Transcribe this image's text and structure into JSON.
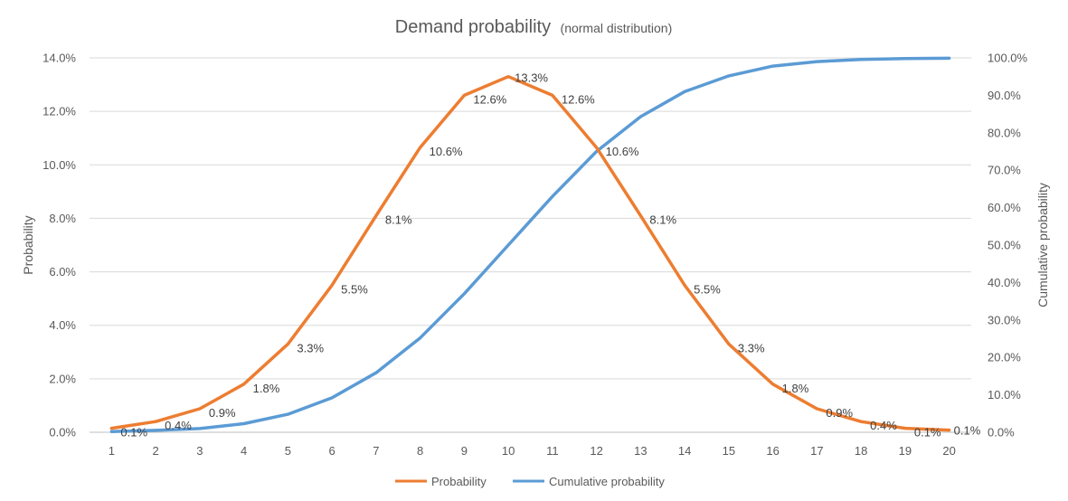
{
  "chart_data": {
    "type": "line",
    "title": "Demand probability",
    "subtitle": "(normal distribution)",
    "categories": [
      "1",
      "2",
      "3",
      "4",
      "5",
      "6",
      "7",
      "8",
      "9",
      "10",
      "11",
      "12",
      "13",
      "14",
      "15",
      "16",
      "17",
      "18",
      "19",
      "20"
    ],
    "ylabel": "Probability",
    "y2label": "Cumulative probability",
    "ylim": [
      0,
      14
    ],
    "y2lim": [
      0,
      100
    ],
    "yticks": [
      "0.0%",
      "2.0%",
      "4.0%",
      "6.0%",
      "8.0%",
      "10.0%",
      "12.0%",
      "14.0%"
    ],
    "y2ticks": [
      "0.0%",
      "10.0%",
      "20.0%",
      "30.0%",
      "40.0%",
      "50.0%",
      "60.0%",
      "70.0%",
      "80.0%",
      "90.0%",
      "100.0%"
    ],
    "grid": true,
    "legend_position": "bottom",
    "series": [
      {
        "name": "Probability",
        "axis": "left",
        "color": "#ED7D31",
        "values": [
          0.15,
          0.4,
          0.88,
          1.8,
          3.3,
          5.5,
          8.1,
          10.65,
          12.6,
          13.3,
          12.6,
          10.65,
          8.1,
          5.5,
          3.3,
          1.8,
          0.88,
          0.4,
          0.15,
          0.08
        ],
        "labels": [
          "0.1%",
          "0.4%",
          "0.9%",
          "1.8%",
          "3.3%",
          "5.5%",
          "8.1%",
          "10.6%",
          "12.6%",
          "13.3%",
          "12.6%",
          "10.6%",
          "8.1%",
          "5.5%",
          "3.3%",
          "1.8%",
          "0.9%",
          "0.4%",
          "0.1%",
          "0.1%"
        ]
      },
      {
        "name": "Cumulative probability",
        "axis": "right",
        "color": "#5B9BD5",
        "values": [
          0.2,
          0.5,
          1.0,
          2.3,
          4.8,
          9.2,
          15.9,
          25.2,
          37.0,
          50.0,
          63.0,
          75.0,
          84.3,
          91.0,
          95.2,
          97.8,
          99.0,
          99.6,
          99.8,
          99.9
        ]
      }
    ]
  }
}
